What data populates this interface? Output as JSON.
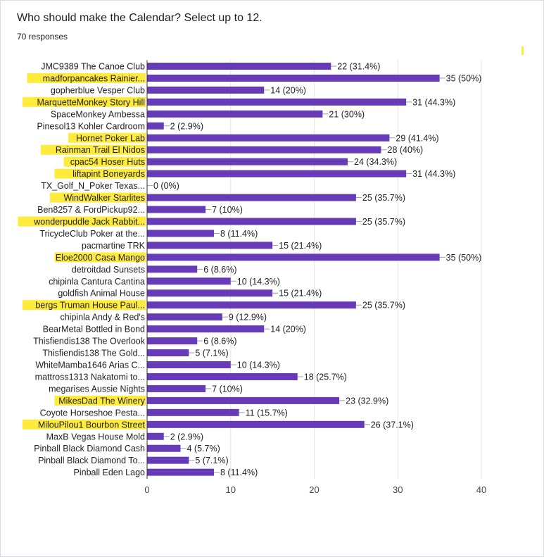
{
  "form": {
    "question": "Who should make the Calendar? Select up to 12.",
    "responses": "70 responses"
  },
  "colors": {
    "bar": "#673ab7",
    "highlight": "#ffeb3b",
    "grid": "#e6e6e6",
    "text": "#202124",
    "axis_text": "#444444"
  },
  "chart_data": {
    "type": "bar",
    "orientation": "horizontal",
    "title": "",
    "xlabel": "",
    "ylabel": "",
    "xlim": [
      0,
      40
    ],
    "x_ticks": [
      0,
      10,
      20,
      30,
      40
    ],
    "grid": true,
    "legend": "none",
    "categories": [
      "JMC9389 The Canoe Club",
      "madforpancakes Rainier...",
      "gopherblue Vesper Club",
      "MarquetteMonkey Story Hill",
      "SpaceMonkey Ambessa",
      "Pinesol13 Kohler Cardroom",
      "Hornet Poker Lab",
      "Rainman Trail El Nidos",
      "cpac54 Hoser Huts",
      "liftapint Boneyards",
      "TX_Golf_N_Poker Texas...",
      "WindWalker Starlites",
      "Ben8257 & FordPickup92...",
      "wonderpuddle Jack Rabbit...",
      "TricycleClub Poker at the...",
      "pacmartine TRK",
      "Eloe2000 Casa Mango",
      "detroitdad Sunsets",
      "chipinla Cantura Cantina",
      "goldfish Animal House",
      "bergs Truman House Paul...",
      "chipinla Andy & Red's",
      "BearMetal Bottled in Bond",
      "Thisfiendis138 The Overlook",
      "Thisfiendis138 The Gold...",
      "WhiteMamba1646 Arias C...",
      "mattross1313 Nakatomi to...",
      "megarises Aussie Nights",
      "MikesDad The Winery",
      "Coyote Horseshoe Pesta...",
      "MilouPilou1 Bourbon Street",
      "MaxB Vegas House Mold",
      "Pinball Black Diamond Cash",
      "Pinball Black Diamond To...",
      "Pinball Eden Lago"
    ],
    "values": [
      22,
      35,
      14,
      31,
      21,
      2,
      29,
      28,
      24,
      31,
      0,
      25,
      7,
      25,
      8,
      15,
      35,
      6,
      10,
      15,
      25,
      9,
      14,
      6,
      5,
      10,
      18,
      7,
      23,
      11,
      26,
      2,
      4,
      5,
      8
    ],
    "value_labels": [
      "22 (31.4%)",
      "35 (50%)",
      "14 (20%)",
      "31 (44.3%)",
      "21 (30%)",
      "2 (2.9%)",
      "29 (41.4%)",
      "28 (40%)",
      "24 (34.3%)",
      "31 (44.3%)",
      "0 (0%)",
      "25 (35.7%)",
      "7 (10%)",
      "25 (35.7%)",
      "8 (11.4%)",
      "15 (21.4%)",
      "35 (50%)",
      "6 (8.6%)",
      "10 (14.3%)",
      "15 (21.4%)",
      "25 (35.7%)",
      "9 (12.9%)",
      "14 (20%)",
      "6 (8.6%)",
      "5 (7.1%)",
      "10 (14.3%)",
      "18 (25.7%)",
      "7 (10%)",
      "23 (32.9%)",
      "11 (15.7%)",
      "26 (37.1%)",
      "2 (2.9%)",
      "4 (5.7%)",
      "5 (7.1%)",
      "8 (11.4%)"
    ],
    "highlighted": [
      "madforpancakes Rainier...",
      "MarquetteMonkey Story Hill",
      "Hornet Poker Lab",
      "Rainman Trail El Nidos",
      "cpac54 Hoser Huts",
      "liftapint Boneyards",
      "WindWalker Starlites",
      "wonderpuddle Jack Rabbit...",
      "Eloe2000 Casa Mango",
      "bergs Truman House Paul...",
      "MikesDad The Winery",
      "MilouPilou1 Bourbon Street"
    ]
  }
}
